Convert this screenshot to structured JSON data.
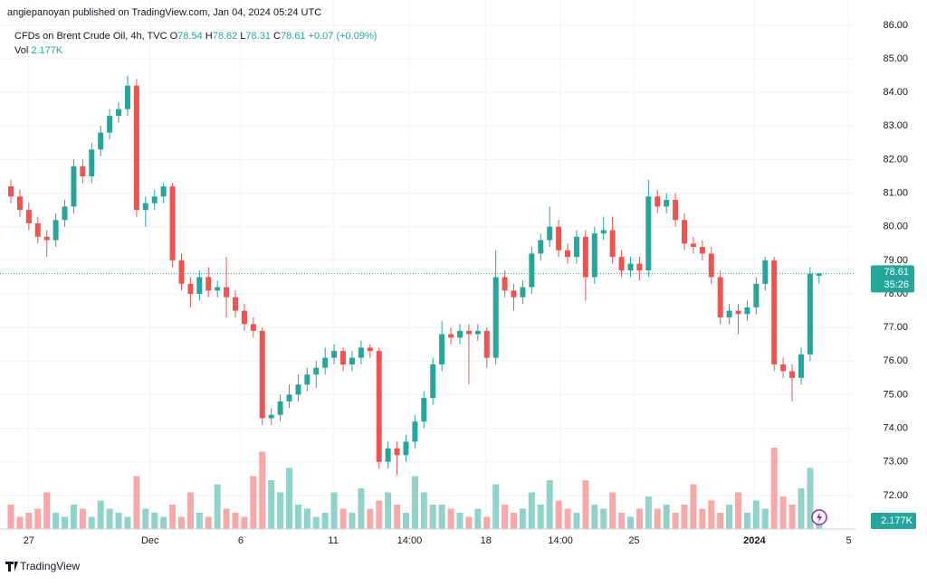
{
  "publisher": "angiepanoyan published on TradingView.com, Jan 04, 2024 05:24 UTC",
  "footer": "TradingView",
  "chart_data": {
    "type": "candlestick",
    "title": "CFDs on Brent Crude Oil, 4h, TVC",
    "ohlc_labels": [
      "O",
      "H",
      "L",
      "C"
    ],
    "change": "+0.07 (+0.09%)",
    "volume_title": "Vol",
    "volume_label": "2.177K",
    "countdown": "35:26",
    "up_color": "#26a69a",
    "down_color": "#ef5350",
    "open": [
      81.2,
      80.9,
      80.5,
      80.1,
      79.7,
      79.6,
      80.2,
      80.6,
      81.8,
      81.5,
      82.3,
      82.8,
      83.3,
      83.5,
      84.2,
      80.5,
      80.7,
      80.9,
      81.2,
      79.0,
      78.3,
      78.0,
      78.5,
      78.1,
      78.2,
      77.9,
      77.5,
      77.1,
      76.9,
      74.3,
      74.4,
      74.8,
      75.0,
      75.3,
      75.6,
      75.8,
      76.1,
      76.3,
      75.9,
      76.1,
      76.4,
      76.3,
      73.0,
      73.4,
      73.2,
      73.6,
      74.2,
      74.9,
      75.9,
      76.8,
      76.7,
      76.9,
      76.8,
      76.9,
      76.1,
      78.5,
      78.1,
      77.9,
      78.2,
      79.2,
      79.6,
      80.0,
      79.3,
      79.1,
      79.7,
      78.5,
      79.8,
      79.9,
      79.1,
      78.7,
      78.9,
      78.7,
      80.9,
      80.6,
      80.8,
      80.2,
      79.5,
      79.4,
      79.2,
      78.5,
      77.3,
      77.5,
      77.4,
      77.6,
      78.3,
      79.0,
      75.9,
      75.7,
      75.5,
      76.2,
      78.54
    ],
    "high": [
      81.4,
      81.1,
      80.7,
      80.3,
      79.9,
      80.4,
      80.8,
      82.0,
      82.0,
      82.5,
      83.0,
      83.5,
      83.7,
      84.5,
      84.4,
      80.9,
      81.1,
      81.3,
      81.3,
      79.2,
      78.5,
      78.7,
      78.8,
      78.4,
      79.1,
      78.1,
      77.7,
      77.3,
      77.0,
      74.6,
      75.0,
      75.3,
      75.6,
      75.8,
      76.0,
      76.4,
      76.5,
      76.4,
      76.3,
      76.6,
      76.5,
      76.4,
      73.6,
      73.6,
      73.8,
      74.4,
      75.1,
      76.1,
      77.2,
      77.0,
      77.1,
      77.1,
      77.1,
      77.0,
      79.3,
      78.7,
      78.3,
      78.4,
      79.4,
      79.8,
      80.6,
      80.2,
      79.5,
      79.9,
      79.9,
      80.0,
      80.3,
      80.3,
      79.3,
      79.1,
      79.1,
      81.4,
      81.1,
      81.0,
      81.0,
      80.4,
      79.7,
      79.6,
      79.4,
      78.7,
      77.7,
      77.7,
      77.8,
      78.5,
      79.1,
      79.1,
      76.1,
      75.9,
      76.4,
      78.8,
      78.62
    ],
    "low": [
      80.7,
      80.3,
      79.9,
      79.5,
      79.1,
      79.4,
      80.0,
      80.4,
      81.3,
      81.3,
      82.1,
      82.6,
      83.1,
      83.3,
      80.3,
      80.0,
      80.5,
      80.7,
      78.8,
      78.1,
      77.6,
      77.8,
      77.9,
      77.9,
      77.3,
      77.3,
      76.9,
      76.7,
      74.1,
      74.1,
      74.2,
      74.6,
      74.8,
      75.1,
      75.2,
      75.6,
      75.9,
      75.7,
      75.7,
      75.9,
      76.1,
      72.8,
      72.8,
      72.6,
      73.0,
      73.4,
      74.0,
      74.7,
      75.7,
      76.5,
      76.5,
      75.3,
      76.6,
      75.8,
      75.9,
      77.9,
      77.5,
      77.7,
      78.0,
      79.0,
      79.4,
      79.1,
      78.9,
      78.9,
      77.8,
      78.3,
      79.6,
      78.9,
      78.5,
      78.5,
      78.4,
      78.5,
      80.4,
      80.4,
      80.0,
      79.3,
      79.2,
      79.0,
      78.3,
      77.1,
      77.1,
      76.8,
      77.2,
      77.4,
      78.1,
      75.7,
      75.5,
      74.8,
      75.3,
      76.0,
      78.31
    ],
    "close": [
      80.9,
      80.5,
      80.1,
      79.7,
      79.6,
      80.2,
      80.6,
      81.8,
      81.5,
      82.3,
      82.8,
      83.3,
      83.5,
      84.2,
      80.5,
      80.7,
      80.9,
      81.2,
      79.0,
      78.3,
      78.0,
      78.5,
      78.1,
      78.2,
      77.9,
      77.5,
      77.1,
      76.9,
      74.3,
      74.4,
      74.8,
      75.0,
      75.3,
      75.6,
      75.8,
      76.1,
      76.3,
      75.9,
      76.1,
      76.4,
      76.3,
      73.0,
      73.4,
      73.2,
      73.6,
      74.2,
      74.9,
      75.9,
      76.8,
      76.7,
      76.9,
      76.8,
      76.9,
      76.1,
      78.5,
      78.1,
      77.9,
      78.2,
      79.2,
      79.6,
      80.0,
      79.3,
      79.1,
      79.7,
      78.5,
      79.8,
      79.9,
      79.1,
      78.7,
      78.9,
      78.7,
      80.9,
      80.6,
      80.8,
      80.2,
      79.5,
      79.4,
      79.2,
      78.5,
      77.3,
      77.5,
      77.4,
      77.6,
      78.3,
      79.0,
      75.9,
      75.7,
      75.5,
      76.2,
      78.6,
      78.61
    ],
    "volume": [
      6,
      3,
      4,
      5,
      9,
      4,
      3,
      6,
      5,
      3,
      7,
      5,
      4,
      3,
      13,
      5,
      4,
      3,
      6,
      3,
      9,
      4,
      3,
      11,
      5,
      4,
      3,
      13,
      19,
      12,
      9,
      15,
      6,
      5,
      3,
      4,
      9,
      5,
      4,
      10,
      5,
      7,
      9,
      6,
      4,
      13,
      9,
      6,
      6,
      5,
      4,
      3,
      5,
      3,
      11,
      6,
      4,
      5,
      9,
      6,
      12,
      7,
      5,
      4,
      12,
      6,
      5,
      9,
      4,
      3,
      5,
      8,
      5,
      6,
      4,
      6,
      11,
      5,
      7,
      4,
      6,
      9,
      4,
      7,
      5,
      20,
      8,
      6,
      10,
      15,
      2.177
    ],
    "ylim": [
      71,
      86.75
    ],
    "yticks": [
      {
        "value": 72,
        "label": "72.00"
      },
      {
        "value": 73,
        "label": "73.00"
      },
      {
        "value": 74,
        "label": "74.00"
      },
      {
        "value": 75,
        "label": "75.00"
      },
      {
        "value": 76,
        "label": "76.00"
      },
      {
        "value": 77,
        "label": "77.00"
      },
      {
        "value": 78,
        "label": "78.00"
      },
      {
        "value": 79,
        "label": "79.00"
      },
      {
        "value": 80,
        "label": "80.00"
      },
      {
        "value": 81,
        "label": "81.00"
      },
      {
        "value": 82,
        "label": "82.00"
      },
      {
        "value": 83,
        "label": "83.00"
      },
      {
        "value": 84,
        "label": "84.00"
      },
      {
        "value": 85,
        "label": "85.00"
      },
      {
        "value": 86,
        "label": "86.00"
      }
    ],
    "xticks": [
      {
        "value": 2,
        "label": "27"
      },
      {
        "value": 15.5,
        "label": "Dec"
      },
      {
        "value": 25.6,
        "label": "6"
      },
      {
        "value": 35.9,
        "label": "11"
      },
      {
        "value": 44.4,
        "label": "14:00"
      },
      {
        "value": 52.9,
        "label": "18"
      },
      {
        "value": 61.2,
        "label": "14:00"
      },
      {
        "value": 69.4,
        "label": "25"
      },
      {
        "value": 82.8,
        "label": "2024"
      },
      {
        "value": 93.3,
        "label": "5"
      }
    ],
    "grid": true
  }
}
